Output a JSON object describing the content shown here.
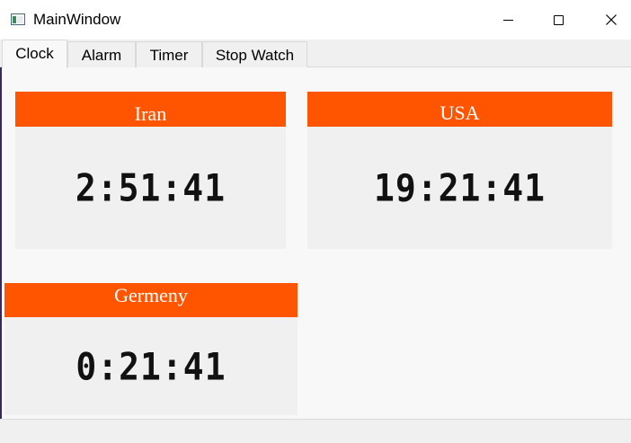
{
  "window": {
    "title": "MainWindow"
  },
  "tabs": [
    {
      "label": "Clock",
      "active": true
    },
    {
      "label": "Alarm",
      "active": false
    },
    {
      "label": "Timer",
      "active": false
    },
    {
      "label": "Stop Watch",
      "active": false
    }
  ],
  "clocks": {
    "iran": {
      "city": "Iran",
      "time": "2:51:41"
    },
    "usa": {
      "city": "USA",
      "time": "19:21:41"
    },
    "germany": {
      "city": "Germeny",
      "time": "0:21:41"
    }
  },
  "colors": {
    "header_accent": "#ff5500",
    "header_text": "#ffffff",
    "panel_bg": "#f0f0f0",
    "digit_color": "#111111"
  },
  "icons": {
    "app": "app-window-icon",
    "minimize": "minimize-icon",
    "maximize": "maximize-icon",
    "close": "close-icon"
  }
}
